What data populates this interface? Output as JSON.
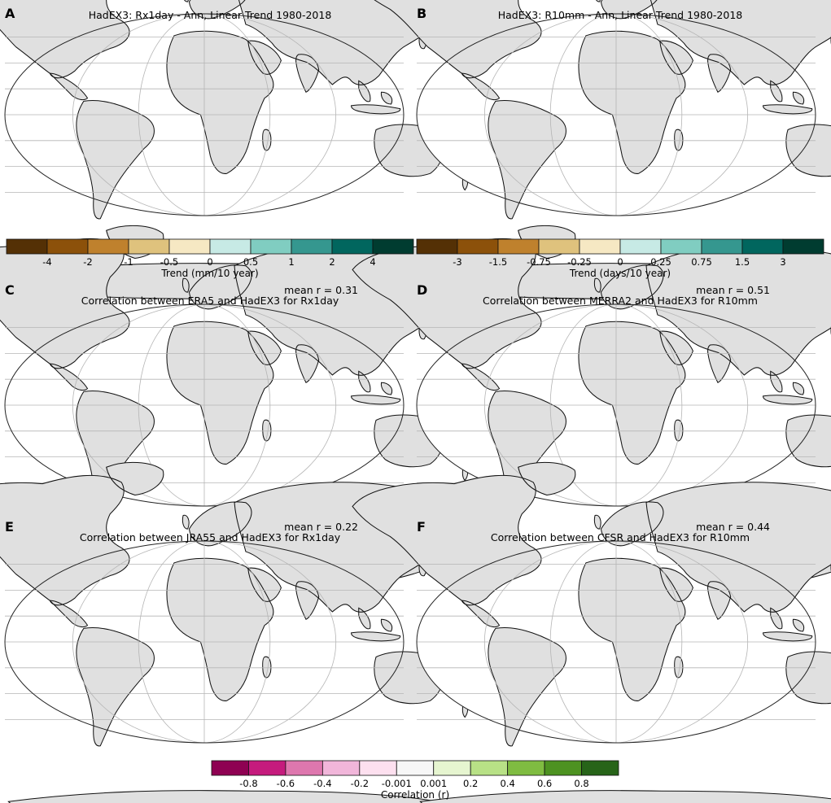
{
  "chart_data": [
    {
      "panel": "A",
      "type": "heatmap",
      "title": "HadEX3: Rx1day - Ann, Linear Trend 1980-2018",
      "colorbar": {
        "label": "Trend (mm/10 year)",
        "ticks": [
          "-4",
          "-2",
          "-1",
          "-0.5",
          "0",
          "0.5",
          "1",
          "2",
          "4"
        ],
        "colors": [
          "#543005",
          "#8c510a",
          "#bf812d",
          "#dfc27d",
          "#f6e8c3",
          "#c7eae5",
          "#80cdc1",
          "#35978f",
          "#01665e",
          "#003c30"
        ]
      }
    },
    {
      "panel": "B",
      "type": "heatmap",
      "title": "HadEX3: R10mm - Ann, Linear Trend 1980-2018",
      "colorbar": {
        "label": "Trend (days/10 year)",
        "ticks": [
          "-3",
          "-1.5",
          "-0.75",
          "-0.25",
          "0",
          "0.25",
          "0.75",
          "1.5",
          "3"
        ],
        "colors": [
          "#543005",
          "#8c510a",
          "#bf812d",
          "#dfc27d",
          "#f6e8c3",
          "#c7eae5",
          "#80cdc1",
          "#35978f",
          "#01665e",
          "#003c30"
        ]
      }
    },
    {
      "panel": "C",
      "type": "heatmap",
      "title": "Correlation between ERA5 and HadEX3 for Rx1day",
      "stat_label": "mean r = ",
      "mean_r": 0.31
    },
    {
      "panel": "D",
      "type": "heatmap",
      "title": "Correlation between MERRA2 and HadEX3 for R10mm",
      "stat_label": "mean r = ",
      "mean_r": 0.51
    },
    {
      "panel": "E",
      "type": "heatmap",
      "title": "Correlation between JRA55 and HadEX3 for Rx1day",
      "stat_label": "mean r = ",
      "mean_r": 0.22
    },
    {
      "panel": "F",
      "type": "heatmap",
      "title": "Correlation between CFSR and HadEX3 for R10mm",
      "stat_label": "mean r = ",
      "mean_r": 0.44
    }
  ],
  "correlation_colorbar": {
    "label": "Correlation (r)",
    "ticks": [
      "-0.8",
      "-0.6",
      "-0.4",
      "-0.2",
      "-0.001",
      "0.001",
      "0.2",
      "0.4",
      "0.6",
      "0.8"
    ],
    "colors": [
      "#8e0152",
      "#c51b7d",
      "#de77ae",
      "#f1b6da",
      "#fde0ef",
      "#f7f7f7",
      "#e6f5d0",
      "#b8e186",
      "#7fbc41",
      "#4d9221",
      "#276419"
    ]
  },
  "map_colors": {
    "land": "#e0e0e0",
    "graticule": "#b5b5b5",
    "coast": "#111111"
  }
}
